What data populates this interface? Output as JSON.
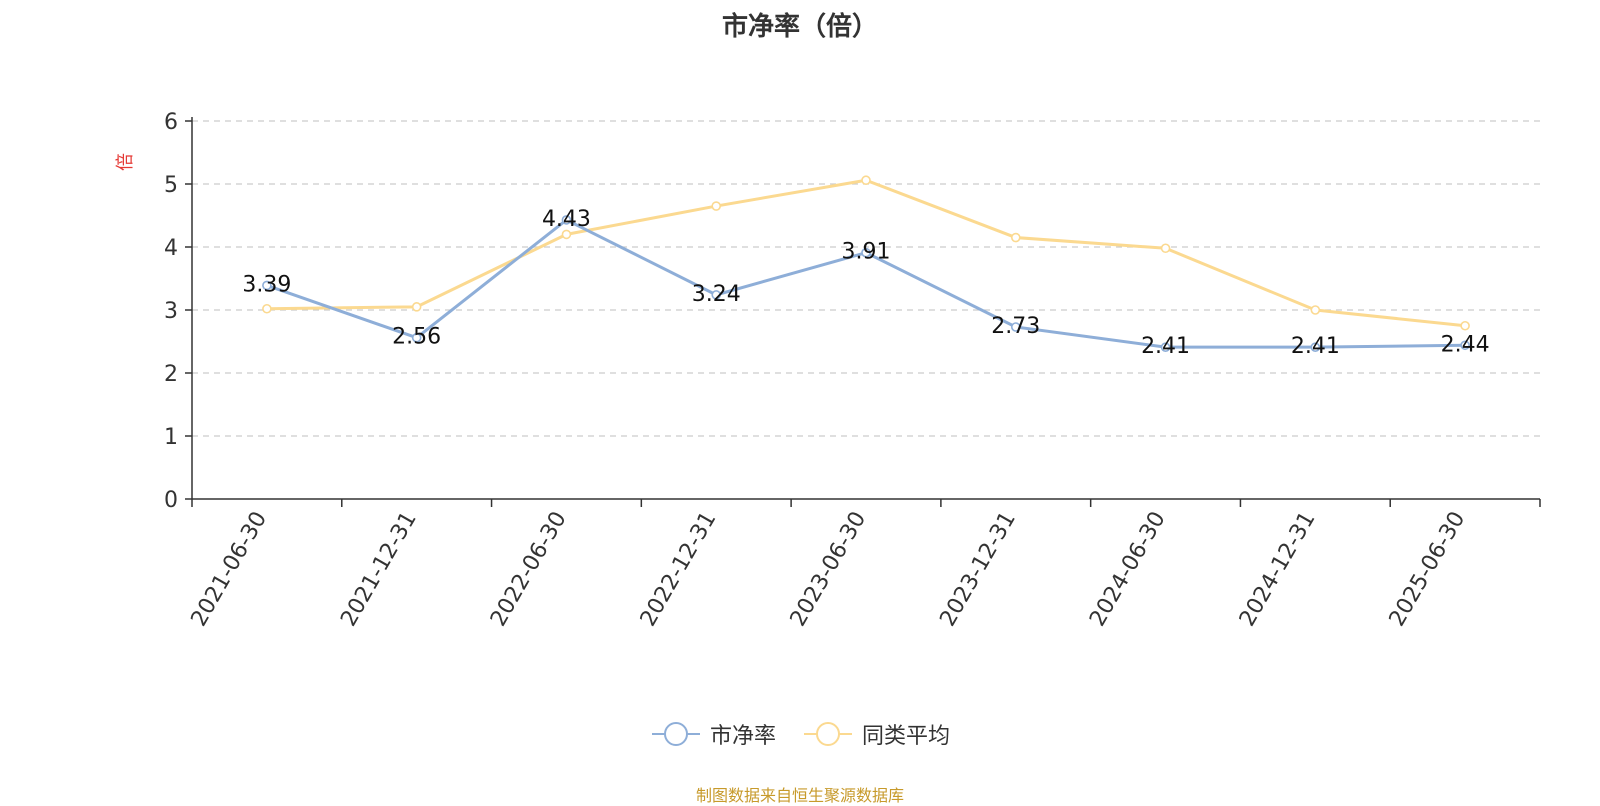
{
  "chart_data": {
    "type": "line",
    "title": "市净率（倍）",
    "ylabel": "倍",
    "ylim": [
      0,
      6
    ],
    "yticks": [
      0,
      1,
      2,
      3,
      4,
      5,
      6
    ],
    "categories": [
      "2021-06-30",
      "2021-12-31",
      "2022-06-30",
      "2022-12-31",
      "2023-06-30",
      "2023-12-31",
      "2024-06-30",
      "2024-12-31",
      "2025-06-30"
    ],
    "series": [
      {
        "name": "市净率",
        "color": "#8eaed8",
        "labeled": true,
        "values": [
          3.39,
          2.56,
          4.43,
          3.24,
          3.91,
          2.73,
          2.41,
          2.41,
          2.44
        ]
      },
      {
        "name": "同类平均",
        "color": "#fbd990",
        "labeled": false,
        "values": [
          3.02,
          3.05,
          4.2,
          4.65,
          5.06,
          4.15,
          3.98,
          3.0,
          2.75
        ]
      }
    ],
    "data_labels": [
      "3.39",
      "2.56",
      "4.43",
      "3.24",
      "3.91",
      "2.73",
      "2.41",
      "2.41",
      "2.44"
    ],
    "grid": true,
    "legend": "bottom-center"
  },
  "source_note": "制图数据来自恒生聚源数据库",
  "colors": {
    "axis": "#333333",
    "grid": "#cccccc",
    "ylabel": "#e53935",
    "source": "#c79a2b"
  }
}
